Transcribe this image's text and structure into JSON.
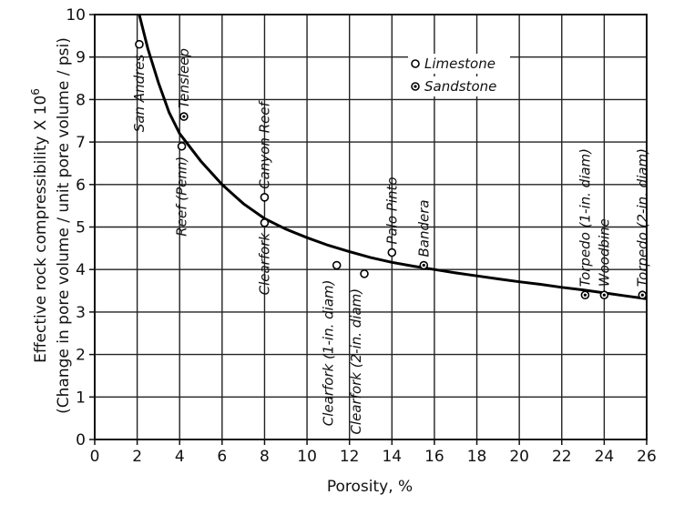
{
  "chart_data": {
    "type": "scatter",
    "xlabel": "Porosity, %",
    "ylabel_line1": "Effective rock compressibility",
    "ylabel_sci": "X 10",
    "ylabel_exp": "6",
    "ylabel_line2": "(Change in pore volume / unit pore volume / psi)",
    "xlim": [
      0,
      26
    ],
    "ylim": [
      0,
      10
    ],
    "x_ticks": [
      0,
      2,
      4,
      6,
      8,
      10,
      12,
      14,
      16,
      18,
      20,
      22,
      24,
      26
    ],
    "y_ticks": [
      0,
      1,
      2,
      3,
      4,
      5,
      6,
      7,
      8,
      9,
      10
    ],
    "grid": true,
    "legend": {
      "placement": "top-right",
      "items": [
        {
          "label": "Limestone",
          "marker": "open-circle"
        },
        {
          "label": "Sandstone",
          "marker": "dotted-circle"
        }
      ]
    },
    "series": [
      {
        "name": "Limestone",
        "marker": "open-circle",
        "points": [
          {
            "label": "San Andres",
            "x": 2.1,
            "y": 9.3
          },
          {
            "label": "Reef (Penn)",
            "x": 4.1,
            "y": 6.9
          },
          {
            "label": "Canyon Reef",
            "x": 8.0,
            "y": 5.7
          },
          {
            "label": "Clearfork",
            "x": 8.0,
            "y": 5.1
          },
          {
            "label": "Clearfork (1-in. diam)",
            "x": 11.4,
            "y": 4.1
          },
          {
            "label": "Clearfork (2-in. diam)",
            "x": 12.7,
            "y": 3.9
          },
          {
            "label": "Palo Pinto",
            "x": 14.0,
            "y": 4.4
          }
        ]
      },
      {
        "name": "Sandstone",
        "marker": "dotted-circle",
        "points": [
          {
            "label": "Tensleep",
            "x": 4.2,
            "y": 7.6
          },
          {
            "label": "Bandera",
            "x": 15.5,
            "y": 4.1
          },
          {
            "label": "Torpedo (1-in. diam)",
            "x": 23.1,
            "y": 3.4
          },
          {
            "label": "Woodbine",
            "x": 24.0,
            "y": 3.4
          },
          {
            "label": "Torpedo (2-in. diam)",
            "x": 25.8,
            "y": 3.4
          }
        ]
      }
    ],
    "curve": {
      "x": [
        2.1,
        2.5,
        3,
        3.5,
        4,
        5,
        6,
        7,
        8,
        9,
        10,
        11,
        12,
        13,
        14,
        15,
        16,
        17,
        18,
        19,
        20,
        21,
        22,
        23,
        24,
        25,
        26
      ],
      "y": [
        10.0,
        9.2,
        8.4,
        7.7,
        7.2,
        6.55,
        6.0,
        5.55,
        5.2,
        4.95,
        4.75,
        4.57,
        4.42,
        4.28,
        4.17,
        4.08,
        4.0,
        3.92,
        3.85,
        3.78,
        3.71,
        3.65,
        3.58,
        3.52,
        3.45,
        3.38,
        3.31
      ]
    }
  }
}
